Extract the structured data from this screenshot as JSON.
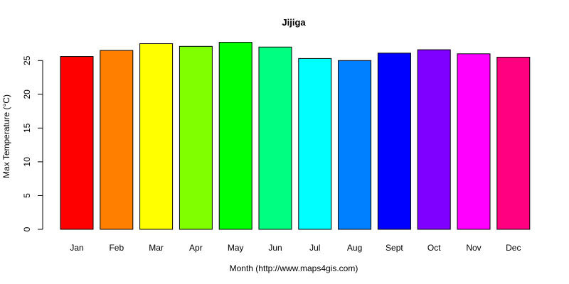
{
  "chart_data": {
    "type": "bar",
    "title": "Jijiga",
    "xlabel": "Month (http://www.maps4gis.com)",
    "ylabel": "Max Temperature (°C)",
    "categories": [
      "Jan",
      "Feb",
      "Mar",
      "Apr",
      "May",
      "Jun",
      "Jul",
      "Aug",
      "Sept",
      "Oct",
      "Nov",
      "Dec"
    ],
    "values": [
      25.6,
      26.5,
      27.5,
      27.1,
      27.7,
      27.0,
      25.3,
      25.0,
      26.1,
      26.6,
      26.0,
      25.5
    ],
    "colors": [
      "#FF0000",
      "#FF8000",
      "#FFFF00",
      "#80FF00",
      "#00FF00",
      "#00FF80",
      "#00FFFF",
      "#0080FF",
      "#0000FF",
      "#8000FF",
      "#FF00FF",
      "#FF0080"
    ],
    "ylim": [
      0,
      28.5
    ],
    "yticks": [
      0,
      5,
      10,
      15,
      20,
      25
    ],
    "grid": false,
    "legend": "none"
  }
}
